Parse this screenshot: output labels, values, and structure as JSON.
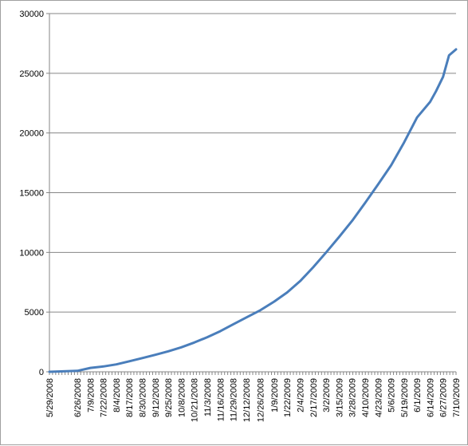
{
  "chart_data": {
    "type": "line",
    "title": "",
    "xlabel": "",
    "ylabel": "",
    "ylim": [
      0,
      30000
    ],
    "y_ticks": [
      0,
      5000,
      10000,
      15000,
      20000,
      25000,
      30000
    ],
    "y_tick_labels": [
      "0",
      "5000",
      "10000",
      "15000",
      "20000",
      "25000",
      "30000"
    ],
    "x_ticks": [
      "5/29/2008",
      "6/26/2008",
      "7/9/2008",
      "7/22/2008",
      "8/4/2008",
      "8/17/2008",
      "8/30/2008",
      "9/12/2008",
      "9/25/2008",
      "10/8/2008",
      "10/21/2008",
      "11/3/2008",
      "11/16/2008",
      "11/29/2008",
      "12/12/2008",
      "12/26/2008",
      "1/9/2009",
      "1/22/2009",
      "2/4/2009",
      "2/17/2009",
      "3/2/2009",
      "3/15/2009",
      "3/28/2009",
      "4/10/2009",
      "4/23/2009",
      "5/6/2009",
      "5/19/2009",
      "6/1/2009",
      "6/14/2009",
      "6/27/2009",
      "7/10/2009"
    ],
    "grid": true,
    "legend": "none",
    "series": [
      {
        "color": "#4a7ebb",
        "x": [
          "5/29/2008",
          "6/26/2008",
          "7/9/2008",
          "7/22/2008",
          "8/4/2008",
          "8/17/2008",
          "8/30/2008",
          "9/12/2008",
          "9/25/2008",
          "10/8/2008",
          "10/21/2008",
          "11/3/2008",
          "11/16/2008",
          "11/29/2008",
          "12/12/2008",
          "12/26/2008",
          "1/9/2009",
          "1/22/2009",
          "2/4/2009",
          "2/17/2009",
          "3/2/2009",
          "3/15/2009",
          "3/28/2009",
          "4/10/2009",
          "4/23/2009",
          "5/6/2009",
          "5/19/2009",
          "6/1/2009",
          "6/14/2009",
          "6/20/2009",
          "6/27/2009",
          "7/3/2009",
          "7/10/2009"
        ],
        "values": [
          0,
          80,
          330,
          450,
          620,
          880,
          1150,
          1420,
          1720,
          2050,
          2450,
          2900,
          3400,
          3980,
          4550,
          5150,
          5880,
          6650,
          7600,
          8750,
          10000,
          11300,
          12650,
          14150,
          15700,
          17300,
          19200,
          21300,
          22600,
          23500,
          24700,
          26500,
          27000
        ]
      }
    ]
  }
}
